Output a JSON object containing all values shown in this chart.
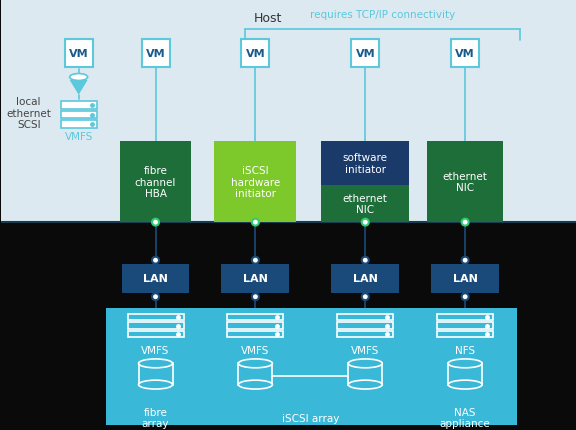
{
  "bg_top": "#dce9f0",
  "bg_bottom": "#0a0a0a",
  "host_label": "Host",
  "tcp_label": "requires TCP/IP connectivity",
  "tcp_color": "#5bc8dc",
  "vm_fill": "#ffffff",
  "vm_border": "#5bc8dc",
  "vm_text_color": "#1a5a8a",
  "vm_str": "VM",
  "lan_fill": "#1a4a7a",
  "lan_text": "#ffffff",
  "lan_str": "LAN",
  "vmfs_str": "VMFS",
  "nfs_str": "NFS",
  "fibre_hba_fill": "#1e6e3a",
  "fibre_hba_str": "fibre\nchannel\nHBA",
  "iscsi_hw_fill": "#7dc82a",
  "iscsi_hw_str": "iSCSI\nhardware\ninitiator",
  "software_fill": "#1a3a6a",
  "software_str": "software\ninitiator",
  "eth_nic_fill": "#1e6e3a",
  "eth_nic_str": "ethernet\nNIC",
  "storage_bg": "#3ab8d8",
  "fibre_array_str": "fibre\narray",
  "iscsi_array_str": "iSCSI array",
  "nas_str": "NAS\nappliance",
  "local_str": "local\nethernet\nSCSI",
  "local_text_color": "#444444",
  "line_color": "#5bc8dc",
  "dark_line": "#1a4a7a",
  "green_dot": "#2ecc71",
  "white": "#ffffff"
}
